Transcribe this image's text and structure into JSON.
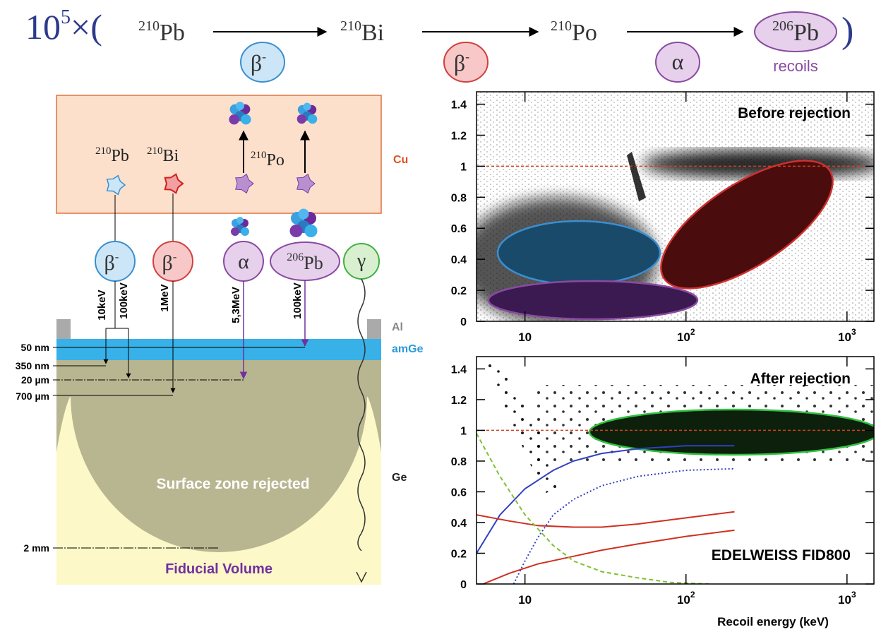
{
  "decay_chain": {
    "prefix": {
      "base": "10",
      "exponent": "5",
      "times": "×("
    },
    "steps": [
      {
        "mass": "210",
        "symbol": "Pb"
      },
      {
        "mass": "210",
        "symbol": "Bi"
      },
      {
        "mass": "210",
        "symbol": "Po"
      },
      {
        "mass": "206",
        "symbol": "Pb"
      }
    ],
    "decays": [
      {
        "symbol": "β",
        "charge": "-"
      },
      {
        "symbol": "β",
        "charge": "-"
      },
      {
        "symbol": "α"
      }
    ],
    "close": ")",
    "recoils": "recoils"
  },
  "diagram": {
    "cu_label": "Cu",
    "al_label": "Al",
    "amge_label": "amGe",
    "ge_label": "Ge",
    "sources": [
      {
        "mass": "210",
        "symbol": "Pb"
      },
      {
        "mass": "210",
        "symbol": "Bi"
      },
      {
        "mass": "210",
        "symbol": "Po"
      }
    ],
    "particles": [
      {
        "symbol": "β",
        "charge": "-"
      },
      {
        "symbol": "β",
        "charge": "-"
      },
      {
        "symbol": "α"
      },
      {
        "mass": "206",
        "symbol": "Pb"
      },
      {
        "symbol": "γ"
      }
    ],
    "energies": [
      "10keV",
      "100keV",
      "1MeV",
      "5,3MeV",
      "100keV"
    ],
    "depths": [
      "50 nm",
      "350 nm",
      "20 µm",
      "700 µm",
      "2 mm"
    ],
    "surface_zone": "Surface zone rejected",
    "fiducial": "Fiducial Volume"
  },
  "chart_data": [
    {
      "type": "scatter",
      "annotations": [
        "Before rejection"
      ],
      "log_x": true,
      "xlim": [
        5,
        1470
      ],
      "ylim": [
        0,
        1.48
      ],
      "xticks": [
        10,
        {
          "value": 100,
          "label": "10",
          "exponent": "2"
        },
        {
          "value": 1000,
          "label": "10",
          "exponent": "3"
        }
      ],
      "yticks": [
        0,
        0.2,
        0.4,
        0.6,
        0.8,
        1,
        1.2,
        1.4
      ],
      "reference_line": 1,
      "reference_color": "#d04020",
      "series": []
    },
    {
      "type": "scatter",
      "annotations": [
        "After rejection",
        "EDELWEISS FID800"
      ],
      "x_label": "Recoil energy (keV)",
      "log_x": true,
      "xlim": [
        5,
        1470
      ],
      "ylim": [
        0,
        1.48
      ],
      "xticks": [
        10,
        {
          "value": 100,
          "label": "10",
          "exponent": "2"
        },
        {
          "value": 1000,
          "label": "10",
          "exponent": "3"
        }
      ],
      "yticks": [
        0,
        0.2,
        0.4,
        0.6,
        0.8,
        1,
        1.2,
        1.4
      ],
      "reference_line": 1,
      "reference_color": "#d04020",
      "series": [
        {
          "color": "#3040c0",
          "style": "solid",
          "x": [
            5,
            7,
            10,
            15,
            20,
            30,
            50,
            100,
            200
          ],
          "values": [
            0.2,
            0.45,
            0.62,
            0.74,
            0.8,
            0.85,
            0.88,
            0.9,
            0.9
          ]
        },
        {
          "color": "#3040c0",
          "style": "dotted",
          "x": [
            8.5,
            10,
            12,
            15,
            20,
            30,
            50,
            100,
            200
          ],
          "values": [
            0,
            0.15,
            0.3,
            0.45,
            0.55,
            0.64,
            0.7,
            0.74,
            0.75
          ]
        },
        {
          "color": "#d03020",
          "style": "solid",
          "x": [
            5,
            8,
            12,
            20,
            30,
            50,
            100,
            200
          ],
          "values": [
            0.45,
            0.41,
            0.38,
            0.37,
            0.37,
            0.39,
            0.43,
            0.47
          ]
        },
        {
          "color": "#d03020",
          "style": "solid",
          "x": [
            5.5,
            8,
            12,
            20,
            30,
            50,
            100,
            200
          ],
          "values": [
            0,
            0.07,
            0.13,
            0.18,
            0.22,
            0.26,
            0.31,
            0.35
          ]
        },
        {
          "color": "#80c030",
          "style": "dashed",
          "x": [
            5,
            7,
            10,
            15,
            20,
            30,
            50,
            80,
            140
          ],
          "values": [
            0.98,
            0.7,
            0.45,
            0.25,
            0.15,
            0.08,
            0.04,
            0.01,
            0
          ]
        }
      ]
    }
  ]
}
